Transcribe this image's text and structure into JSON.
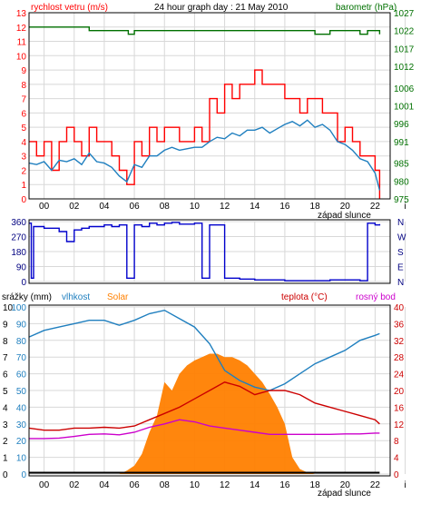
{
  "chart_data": [
    {
      "type": "line",
      "title": "24 hour graph day : 21 May 2010",
      "left_label": "rychlost vetru (m/s)",
      "right_label": "barometr (hPa)",
      "left_ticks": [
        0,
        1,
        2,
        3,
        4,
        5,
        6,
        7,
        8,
        9,
        10,
        11,
        12,
        13
      ],
      "right_ticks": [
        975,
        980,
        985,
        991,
        996,
        1001,
        1006,
        1012,
        1017,
        1022,
        1027
      ],
      "right_range": [
        975,
        1027
      ],
      "left_range": [
        0,
        13
      ],
      "x_labels": [
        "00",
        "02",
        "04",
        "06",
        "08",
        "10",
        "12",
        "14",
        "16",
        "18",
        "20",
        "22",
        "i"
      ],
      "sunset_label": "západ slunce",
      "series": [
        {
          "name": "wind speed / gusts",
          "color": "#ff0000",
          "axis": "left",
          "x": [
            0,
            0.5,
            1,
            1.5,
            2,
            2.5,
            3,
            3.5,
            4,
            4.5,
            5,
            5.5,
            6,
            6.5,
            7,
            7.5,
            8,
            8.5,
            9,
            9.5,
            10,
            10.5,
            11,
            11.5,
            12,
            12.5,
            13,
            13.5,
            14,
            14.5,
            15,
            15.5,
            16,
            16.5,
            17,
            17.5,
            18,
            18.5,
            19,
            19.5,
            20,
            20.5,
            21,
            21.5,
            22,
            22.5,
            23,
            23.3
          ],
          "values": [
            4,
            3,
            4,
            2,
            4,
            5,
            4,
            3,
            5,
            4,
            4,
            3,
            2,
            1,
            4,
            3,
            5,
            4,
            5,
            5,
            4,
            4,
            5,
            4,
            7,
            6,
            8,
            7,
            8,
            8,
            9,
            8,
            8,
            8,
            7,
            7,
            6,
            7,
            7,
            6,
            6,
            4,
            5,
            4,
            3,
            3,
            2,
            0
          ]
        },
        {
          "name": "wind average",
          "color": "#1f7fbf",
          "axis": "left",
          "x": [
            0,
            0.5,
            1,
            1.5,
            2,
            2.5,
            3,
            3.5,
            4,
            4.5,
            5,
            5.5,
            6,
            6.5,
            7,
            7.5,
            8,
            8.5,
            9,
            9.5,
            10,
            10.5,
            11,
            11.5,
            12,
            12.5,
            13,
            13.5,
            14,
            14.5,
            15,
            15.5,
            16,
            16.5,
            17,
            17.5,
            18,
            18.5,
            19,
            19.5,
            20,
            20.5,
            21,
            21.5,
            22,
            22.5,
            23,
            23.3
          ],
          "values": [
            2.5,
            2.4,
            2.6,
            2.0,
            2.7,
            2.6,
            2.8,
            2.4,
            3.2,
            2.6,
            2.5,
            2.2,
            1.6,
            1.2,
            2.4,
            2.2,
            3.0,
            3.0,
            3.4,
            3.6,
            3.4,
            3.5,
            3.6,
            3.6,
            4.0,
            4.3,
            4.2,
            4.6,
            4.4,
            4.8,
            4.8,
            5.0,
            4.6,
            4.9,
            5.2,
            5.4,
            5.1,
            5.5,
            5.0,
            5.2,
            4.8,
            4.0,
            3.8,
            3.4,
            2.8,
            2.6,
            1.8,
            0.6
          ]
        },
        {
          "name": "barometer",
          "color": "#007000",
          "axis": "right",
          "x": [
            0,
            1,
            2,
            3,
            4,
            5,
            6,
            6.6,
            7,
            8,
            9,
            10,
            11,
            12,
            13,
            14,
            15,
            16,
            17,
            18,
            19,
            20,
            21,
            22,
            22.5,
            23,
            23.3
          ],
          "values": [
            1023,
            1023,
            1023,
            1023,
            1022,
            1022,
            1022,
            1021,
            1022,
            1022,
            1022,
            1022,
            1022,
            1022,
            1022,
            1022,
            1022,
            1022,
            1022,
            1022,
            1021,
            1022,
            1022,
            1021,
            1022,
            1022,
            1021
          ]
        }
      ]
    },
    {
      "type": "line",
      "title": "",
      "left_ticks": [
        0,
        90,
        180,
        270,
        360
      ],
      "right_labels": [
        "N",
        "W",
        "S",
        "E",
        "N"
      ],
      "left_range": [
        0,
        360
      ],
      "series": [
        {
          "name": "wind direction",
          "color": "#0000cc",
          "x": [
            0,
            0.15,
            0.3,
            1,
            2,
            2.5,
            3,
            3.5,
            4,
            5,
            5.5,
            6,
            6.5,
            7,
            7.5,
            8,
            8.5,
            9,
            9.5,
            10,
            11,
            11.5,
            12,
            13,
            14,
            15,
            16,
            17,
            18,
            19,
            20,
            21,
            22,
            22.5,
            23,
            23.3
          ],
          "values": [
            350,
            20,
            330,
            320,
            300,
            240,
            310,
            320,
            330,
            340,
            330,
            340,
            20,
            340,
            330,
            350,
            340,
            350,
            355,
            345,
            350,
            20,
            340,
            20,
            15,
            10,
            10,
            5,
            5,
            5,
            10,
            10,
            5,
            350,
            340,
            345
          ]
        }
      ]
    },
    {
      "type": "area",
      "title": "",
      "labels": {
        "rain": "srážky (mm)",
        "humidity": "vlhkost",
        "solar": "Solar",
        "temperature": "teplota (°C)",
        "dewpoint": "rosný bod"
      },
      "left_ticks_rain": [
        0,
        1,
        2,
        3,
        4,
        5,
        6,
        7,
        8,
        9,
        10
      ],
      "left_ticks_humidity": [
        0,
        10,
        20,
        30,
        40,
        50,
        60,
        70,
        80,
        90,
        100
      ],
      "right_ticks": [
        0,
        4,
        8,
        12,
        16,
        20,
        24,
        28,
        32,
        36,
        40
      ],
      "right_range": [
        0,
        40
      ],
      "left_range": [
        0,
        100
      ],
      "x_labels": [
        "00",
        "02",
        "04",
        "06",
        "08",
        "10",
        "12",
        "14",
        "16",
        "18",
        "20",
        "22",
        "i"
      ],
      "sunset_label": "západ slunce",
      "series": [
        {
          "name": "vlhkost",
          "color": "#1f7fbf",
          "axis": "left",
          "x": [
            0,
            1,
            2,
            3,
            4,
            5,
            6,
            7,
            8,
            9,
            10,
            11,
            12,
            12.5,
            13,
            14,
            15,
            16,
            17,
            18,
            19,
            20,
            21,
            22,
            23,
            23.3
          ],
          "values": [
            82,
            86,
            88,
            90,
            92,
            92,
            89,
            92,
            96,
            98,
            93,
            88,
            78,
            70,
            62,
            56,
            52,
            50,
            54,
            60,
            66,
            70,
            74,
            80,
            83,
            84
          ]
        },
        {
          "name": "teplota",
          "color": "#cc0000",
          "axis": "right",
          "x": [
            0,
            1,
            2,
            3,
            4,
            5,
            6,
            7,
            8,
            9,
            10,
            11,
            12,
            13,
            14,
            15,
            16,
            17,
            18,
            19,
            20,
            21,
            22,
            23,
            23.3
          ],
          "values": [
            11,
            10.5,
            10.5,
            11,
            11,
            11.2,
            11,
            11.5,
            13,
            14.5,
            16,
            18,
            20,
            22,
            21,
            19,
            20,
            20,
            19,
            17,
            16,
            15,
            14,
            13,
            12
          ]
        },
        {
          "name": "rosný bod",
          "color": "#cc00cc",
          "axis": "right",
          "x": [
            0,
            1,
            2,
            3,
            4,
            5,
            6,
            7,
            8,
            9,
            10,
            11,
            12,
            13,
            14,
            15,
            16,
            17,
            18,
            19,
            20,
            21,
            22,
            23,
            23.3
          ],
          "values": [
            8.5,
            8.5,
            8.6,
            9,
            9.5,
            9.6,
            9.4,
            10,
            11.2,
            12,
            13,
            12.5,
            11.5,
            11,
            10.5,
            10,
            9.5,
            9.5,
            9.5,
            9.5,
            9.5,
            9.6,
            9.6,
            9.8,
            9.8
          ]
        },
        {
          "name": "Solar",
          "color": "#ff8000",
          "axis": "left",
          "x": [
            0,
            6,
            6.5,
            7,
            7.5,
            8,
            8.5,
            9,
            9.5,
            10,
            10.5,
            11,
            11.5,
            12,
            12.5,
            13,
            13.5,
            14,
            14.5,
            15,
            15.5,
            16,
            16.5,
            17,
            17.5,
            18,
            18.5,
            19,
            23.3
          ],
          "values": [
            0,
            0,
            2,
            5,
            12,
            25,
            35,
            55,
            50,
            60,
            65,
            68,
            70,
            72,
            72,
            70,
            70,
            68,
            65,
            60,
            55,
            48,
            40,
            30,
            10,
            3,
            1,
            0,
            0
          ]
        },
        {
          "name": "srážky",
          "color": "#000000",
          "axis": "left",
          "x": [
            0,
            23.3
          ],
          "values": [
            0,
            0
          ]
        }
      ]
    }
  ]
}
